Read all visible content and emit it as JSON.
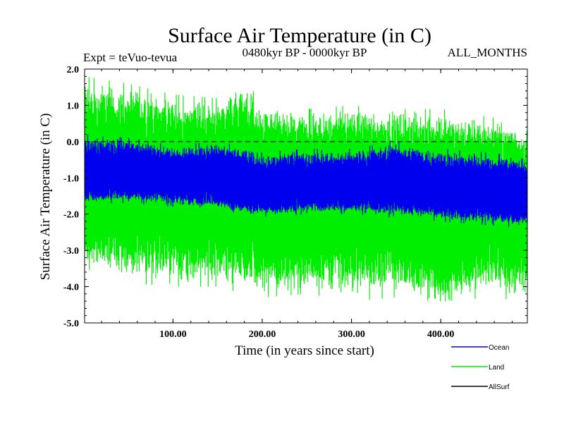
{
  "chart_data": {
    "type": "line",
    "title": "Surface Air Temperature (in C)",
    "subtitle_left": "Expt = teVuo-tevua",
    "subtitle_center": "0480kyr BP - 0000kyr BP",
    "subtitle_right": "ALL_MONTHS",
    "xlabel": "Time (in years since start)",
    "ylabel": "Surface Air Temperature (in C)",
    "xlim": [
      1,
      497
    ],
    "ylim": [
      -5.0,
      2.0
    ],
    "x_ticks": [
      100,
      200,
      300,
      400
    ],
    "x_tick_labels": [
      "100.00",
      "200.00",
      "300.00",
      "400.00"
    ],
    "y_ticks": [
      2.0,
      1.0,
      0.0,
      -1.0,
      -2.0,
      -3.0,
      -4.0,
      -5.0
    ],
    "y_tick_labels": [
      "2.0",
      "1.0",
      "0.0",
      "-1.0",
      "-2.0",
      "-3.0",
      "-4.0",
      "-5.0"
    ],
    "reference_line": {
      "y": 0.0,
      "style": "dashed"
    },
    "legend_position": "bottom-right, outside plot",
    "series": [
      {
        "name": "Land",
        "color": "#00ee00",
        "sampled_x": [
          1,
          50,
          100,
          150,
          180,
          200,
          250,
          300,
          350,
          400,
          450,
          497
        ],
        "sampled_mean": [
          -1.0,
          -1.0,
          -1.1,
          -1.1,
          -1.2,
          -1.3,
          -1.3,
          -1.2,
          -1.2,
          -1.4,
          -1.5,
          -1.6
        ],
        "sampled_max": [
          1.8,
          1.6,
          1.3,
          1.2,
          1.8,
          1.0,
          0.9,
          1.0,
          0.9,
          0.9,
          0.7,
          0.5
        ],
        "sampled_min": [
          -3.5,
          -3.9,
          -4.0,
          -4.0,
          -4.2,
          -4.3,
          -4.2,
          -4.4,
          -4.3,
          -4.8,
          -4.2,
          -4.5
        ]
      },
      {
        "name": "Ocean",
        "color": "#0000ee",
        "sampled_x": [
          1,
          50,
          100,
          150,
          180,
          200,
          250,
          300,
          350,
          400,
          450,
          497
        ],
        "sampled_mean": [
          -0.9,
          -0.9,
          -1.0,
          -1.0,
          -1.3,
          -1.3,
          -1.2,
          -1.2,
          -1.1,
          -1.3,
          -1.4,
          -1.5
        ],
        "sampled_max": [
          0.2,
          0.1,
          -0.1,
          0.0,
          -0.1,
          -0.3,
          -0.2,
          -0.2,
          0.0,
          -0.2,
          -0.3,
          -0.4
        ],
        "sampled_min": [
          -1.7,
          -1.7,
          -1.8,
          -1.9,
          -2.0,
          -2.1,
          -2.0,
          -2.0,
          -2.1,
          -2.2,
          -2.3,
          -2.4
        ]
      },
      {
        "name": "AllSurf",
        "color": "#000000",
        "values": []
      }
    ]
  }
}
